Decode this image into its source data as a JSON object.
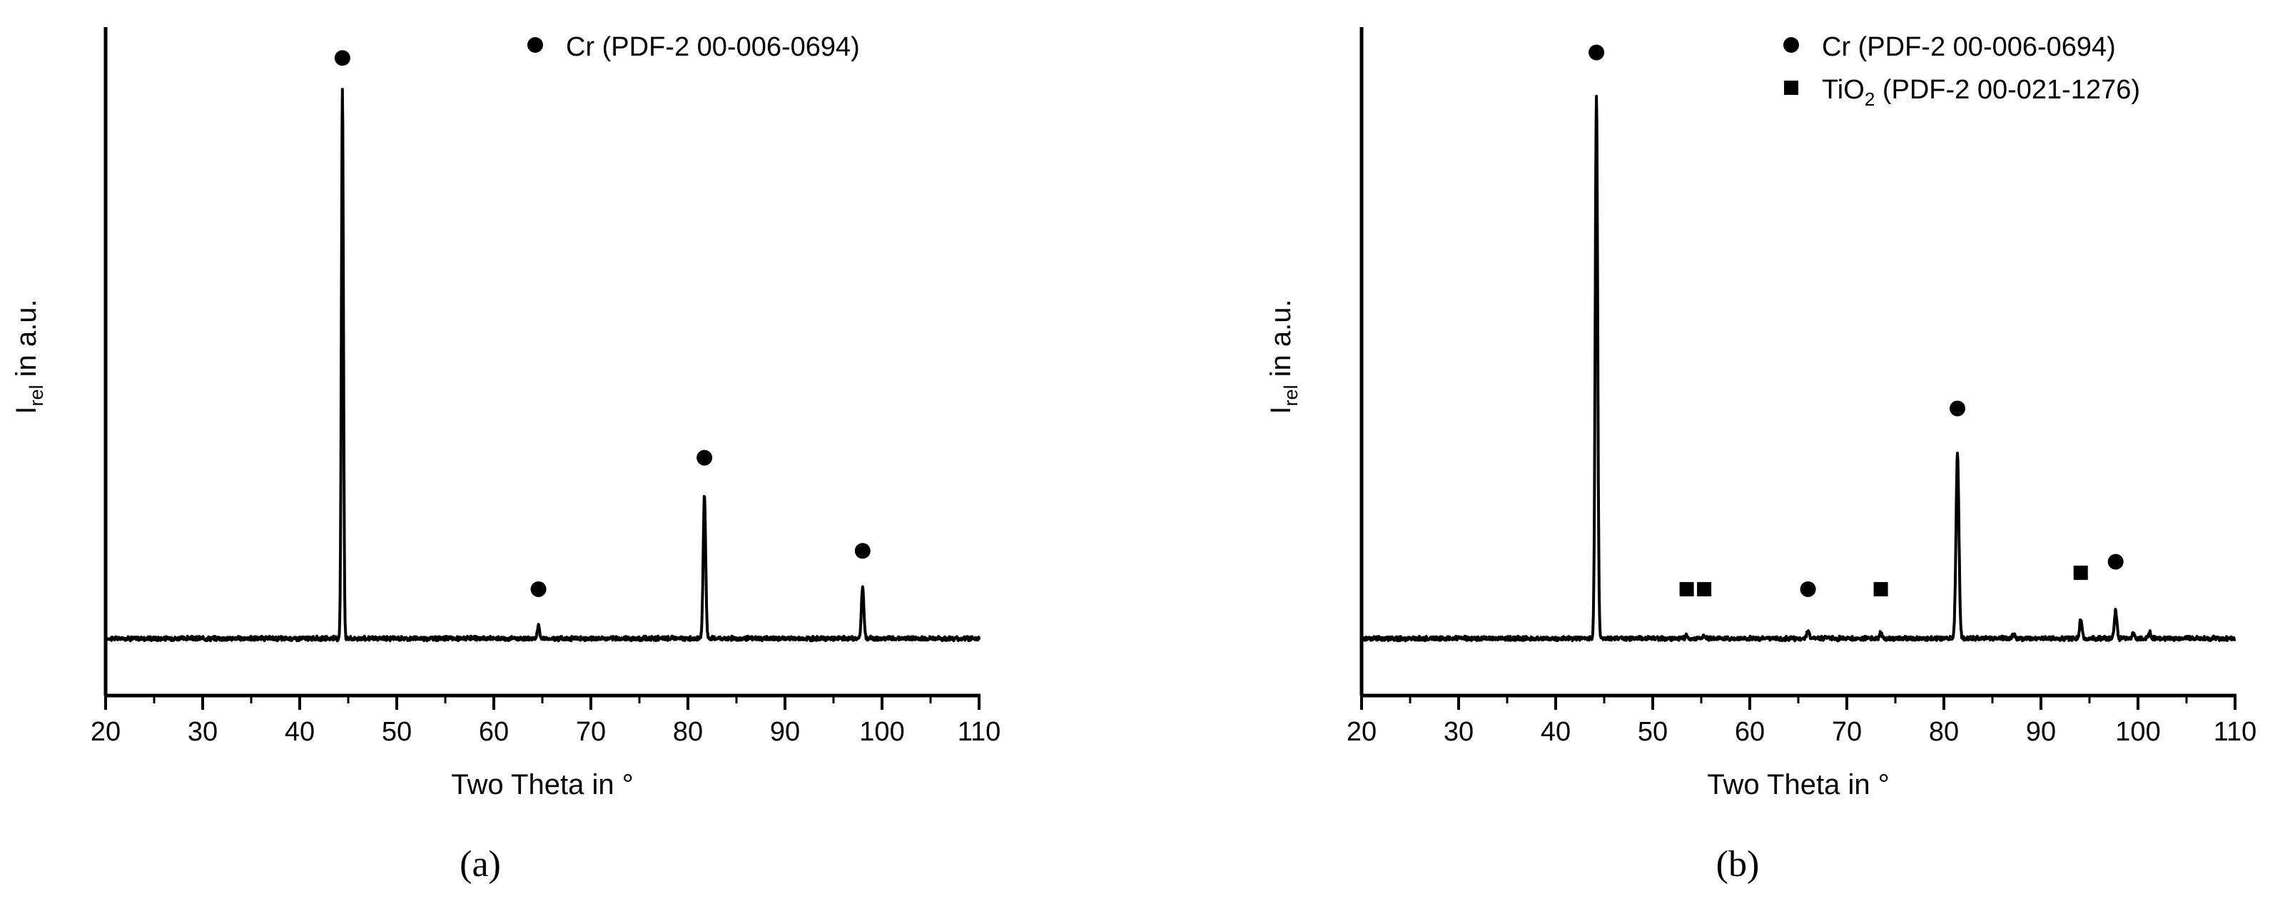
{
  "chart_data": [
    {
      "type": "line",
      "panel_label": "(a)",
      "xlabel": "Two Theta in °",
      "ylabel": {
        "main": "I",
        "sub": "rel",
        "rest": " in a.u."
      },
      "xlim": [
        20,
        110
      ],
      "xticks": [
        "20",
        "30",
        "40",
        "50",
        "60",
        "70",
        "80",
        "90",
        "100",
        "110"
      ],
      "grid": false,
      "legend_position": "top",
      "legend": [
        {
          "marker": "circle",
          "text": "Cr (PDF-2 00-006-0694)",
          "sub": "",
          "rest": ""
        }
      ],
      "series": {
        "baseline": 0.04,
        "peaks": [
          {
            "x": 44.4,
            "height": 1.0,
            "width": 0.25
          },
          {
            "x": 64.6,
            "height": 0.025,
            "width": 0.25
          },
          {
            "x": 81.7,
            "height": 0.26,
            "width": 0.3
          },
          {
            "x": 98.0,
            "height": 0.095,
            "width": 0.3
          }
        ]
      },
      "markers": [
        {
          "type": "circle",
          "x": 44.4,
          "y": 1.06
        },
        {
          "type": "circle",
          "x": 64.6,
          "y": 0.09
        },
        {
          "type": "circle",
          "x": 81.7,
          "y": 0.33
        },
        {
          "type": "circle",
          "x": 98.0,
          "y": 0.16
        }
      ]
    },
    {
      "type": "line",
      "panel_label": "(b)",
      "xlabel": "Two Theta in °",
      "ylabel": {
        "main": "I",
        "sub": "rel",
        "rest": " in a.u."
      },
      "xlim": [
        20,
        110
      ],
      "xticks": [
        "20",
        "30",
        "40",
        "50",
        "60",
        "70",
        "80",
        "90",
        "100",
        "110"
      ],
      "grid": false,
      "legend_position": "top-right",
      "legend": [
        {
          "marker": "circle",
          "text": "Cr (PDF-2 00-006-0694)",
          "sub": "",
          "rest": ""
        },
        {
          "marker": "square",
          "text": "TiO",
          "sub": "2",
          "rest": " (PDF-2 00-021-1276)"
        }
      ],
      "series": {
        "baseline": 0.04,
        "peaks": [
          {
            "x": 44.2,
            "height": 0.99,
            "width": 0.3
          },
          {
            "x": 53.5,
            "height": 0.006,
            "width": 0.3
          },
          {
            "x": 55.3,
            "height": 0.006,
            "width": 0.3
          },
          {
            "x": 66.0,
            "height": 0.015,
            "width": 0.3
          },
          {
            "x": 73.5,
            "height": 0.012,
            "width": 0.3
          },
          {
            "x": 81.4,
            "height": 0.34,
            "width": 0.35
          },
          {
            "x": 87.2,
            "height": 0.008,
            "width": 0.3
          },
          {
            "x": 94.1,
            "height": 0.035,
            "width": 0.3
          },
          {
            "x": 97.7,
            "height": 0.05,
            "width": 0.3
          },
          {
            "x": 99.5,
            "height": 0.01,
            "width": 0.3
          },
          {
            "x": 101.2,
            "height": 0.012,
            "width": 0.3
          }
        ]
      },
      "markers": [
        {
          "type": "circle",
          "x": 44.2,
          "y": 1.07
        },
        {
          "type": "circle",
          "x": 66.0,
          "y": 0.09
        },
        {
          "type": "circle",
          "x": 81.4,
          "y": 0.42
        },
        {
          "type": "circle",
          "x": 97.7,
          "y": 0.14
        },
        {
          "type": "square",
          "x": 53.5,
          "y": 0.09
        },
        {
          "type": "square",
          "x": 55.3,
          "y": 0.09
        },
        {
          "type": "square",
          "x": 73.5,
          "y": 0.09
        },
        {
          "type": "square",
          "x": 94.1,
          "y": 0.12
        }
      ]
    }
  ]
}
